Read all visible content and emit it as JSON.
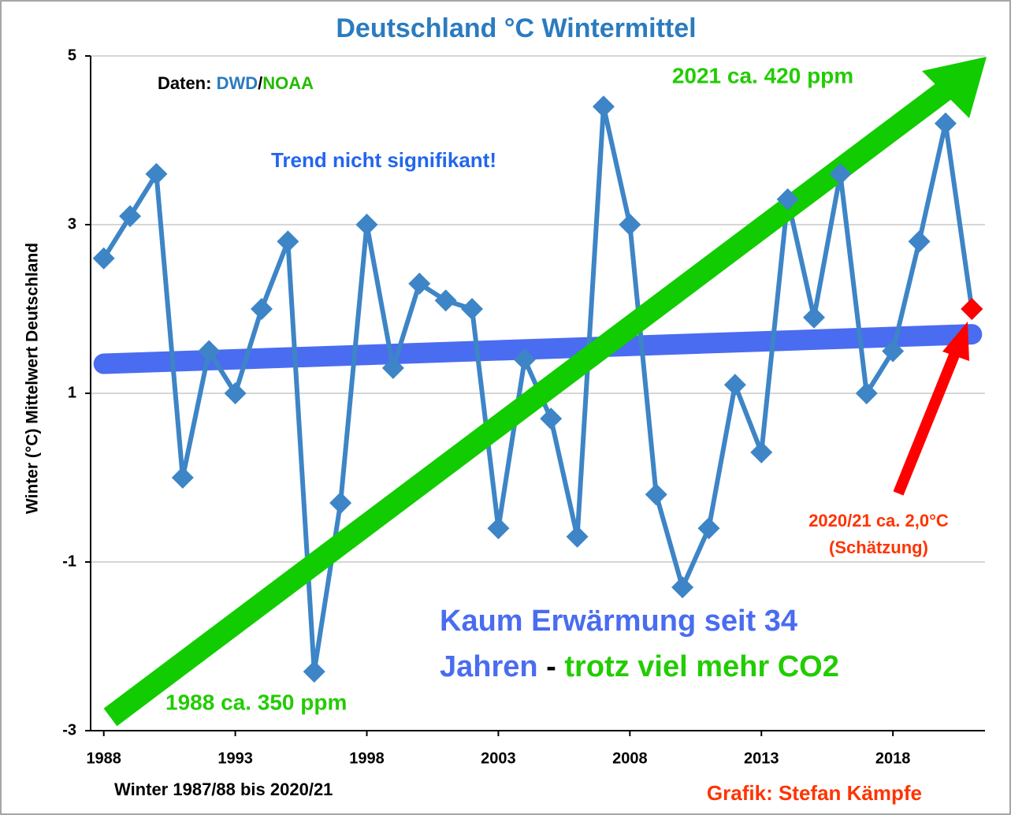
{
  "chart_data": {
    "type": "line",
    "title": "Deutschland °C Wintermittel",
    "x_label": "Winter 1987/88 bis 2020/21",
    "y_label": "Winter (°C) Mittelwert Deutschland",
    "x": [
      1988,
      1989,
      1990,
      1991,
      1992,
      1993,
      1994,
      1995,
      1996,
      1997,
      1998,
      1999,
      2000,
      2001,
      2002,
      2003,
      2004,
      2005,
      2006,
      2007,
      2008,
      2009,
      2010,
      2011,
      2012,
      2013,
      2014,
      2015,
      2016,
      2017,
      2018,
      2019,
      2020,
      2021
    ],
    "series": [
      {
        "color": "#3d85c6",
        "values": [
          2.6,
          3.1,
          3.6,
          0.0,
          1.5,
          1.0,
          2.0,
          2.8,
          -2.3,
          -0.3,
          3.0,
          1.3,
          2.3,
          2.1,
          2.0,
          -0.6,
          1.4,
          0.7,
          -0.7,
          4.4,
          3.0,
          -0.2,
          -1.3,
          -0.6,
          1.1,
          0.3,
          3.3,
          1.9,
          3.6,
          1.0,
          1.5,
          2.8,
          4.2,
          2.0
        ]
      },
      {
        "color": "#ff0000",
        "values": [
          null,
          null,
          null,
          null,
          null,
          null,
          null,
          null,
          null,
          null,
          null,
          null,
          null,
          null,
          null,
          null,
          null,
          null,
          null,
          null,
          null,
          null,
          null,
          null,
          null,
          null,
          null,
          null,
          null,
          null,
          null,
          null,
          null,
          2.0
        ]
      }
    ],
    "trend": {
      "color": "#4a6cf0",
      "x": [
        1988,
        2021
      ],
      "values": [
        1.35,
        1.7
      ]
    },
    "xlim": [
      1987.5,
      2021.5
    ],
    "xticks": [
      1988,
      1993,
      1998,
      2003,
      2008,
      2013,
      2018
    ],
    "ylim": [
      -3,
      5
    ],
    "yticks": [
      -3,
      -1,
      1,
      3,
      5
    ],
    "grid": true,
    "annotations": {
      "source_prefix": "Daten: ",
      "source_dwd": "DWD",
      "source_slash": "/",
      "source_noaa": "NOAA",
      "co2_2021": "2021 ca. 420 ppm",
      "co2_1988": "1988 ca. 350 ppm",
      "trend_note": "Trend nicht signifikant!",
      "estimate_line1": "2020/21 ca. 2,0°C",
      "estimate_line2": "(Schätzung)",
      "headline_line1": "Kaum Erwärmung seit 34",
      "headline_blue": "Jahren",
      "headline_dash": " - ",
      "headline_green": "trotz viel mehr CO2",
      "credit": "Grafik: Stefan Kämpfe"
    }
  }
}
